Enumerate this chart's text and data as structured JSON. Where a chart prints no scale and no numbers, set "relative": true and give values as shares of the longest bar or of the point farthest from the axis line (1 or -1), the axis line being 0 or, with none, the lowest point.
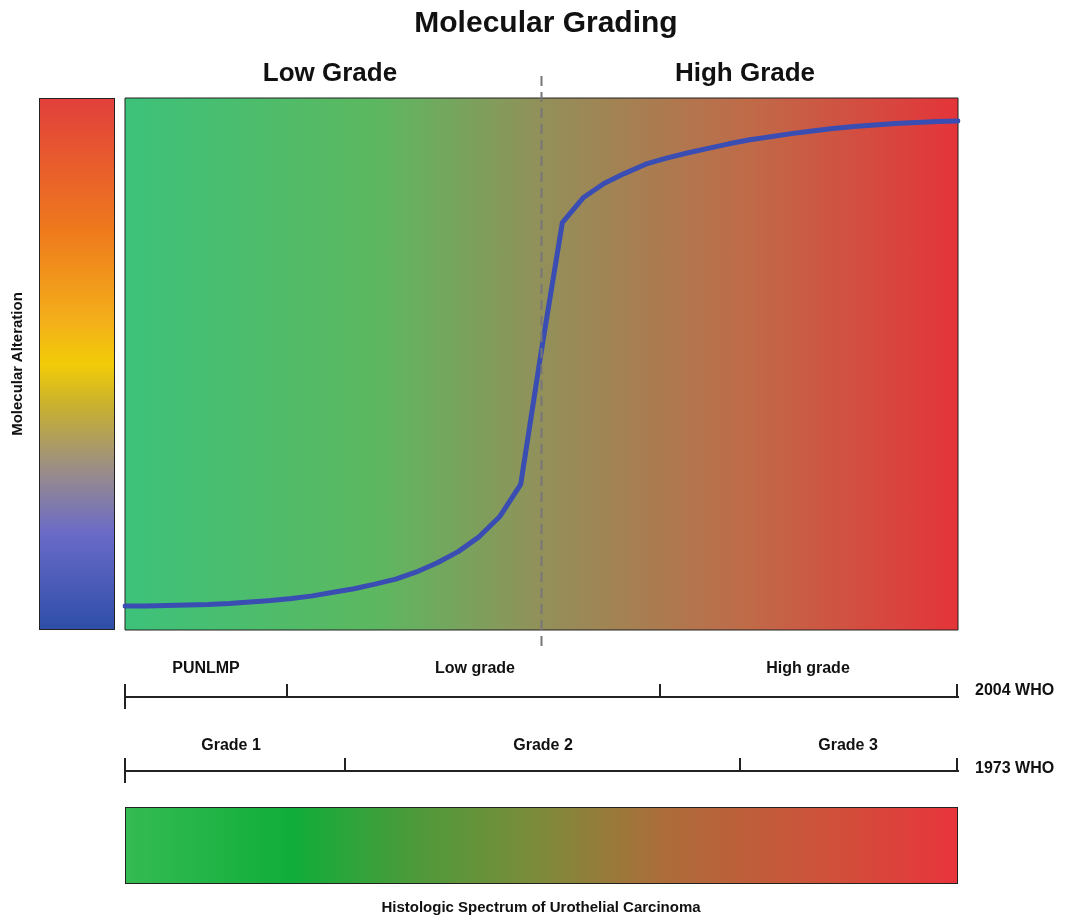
{
  "chart_data": {
    "type": "line",
    "title": "Molecular Grading",
    "relative": true,
    "legend": false,
    "marker": "none",
    "line_style": "solid",
    "categories": [
      null,
      null,
      null,
      null,
      null,
      null,
      null,
      null,
      null,
      null,
      null,
      null,
      null,
      null,
      null,
      null,
      null,
      null,
      null,
      null,
      null,
      null,
      null,
      null,
      null,
      null,
      null,
      null,
      null,
      null,
      null,
      null,
      null,
      null,
      null,
      null,
      null,
      null,
      null,
      null,
      null
    ],
    "series": [
      {
        "color": "#3a4db2",
        "values": [
          0.047,
          0.047,
          0.048,
          0.049,
          0.05,
          0.052,
          0.055,
          0.058,
          0.062,
          0.067,
          0.074,
          0.081,
          0.09,
          0.1,
          0.114,
          0.132,
          0.154,
          0.183,
          0.223,
          0.286,
          0.55,
          0.8,
          0.849,
          0.877,
          0.897,
          0.915,
          0.927,
          0.937,
          0.946,
          0.955,
          0.963,
          0.969,
          0.975,
          0.98,
          0.985,
          0.989,
          0.992,
          0.995,
          0.997,
          0.999,
          1
        ]
      }
    ],
    "ref_lines": [
      {
        "axis": "x",
        "line_style": "dashed",
        "color": "#777777"
      }
    ],
    "annotations": [
      "Low Grade",
      "High Grade",
      "PUNLMP",
      "Low grade",
      "High grade",
      "2004 WHO",
      "Grade 1",
      "Grade 2",
      "Grade 3",
      "1973 WHO",
      "Molecular Alteration",
      "Histologic Spectrum of Urothelial Carcinoma"
    ]
  }
}
